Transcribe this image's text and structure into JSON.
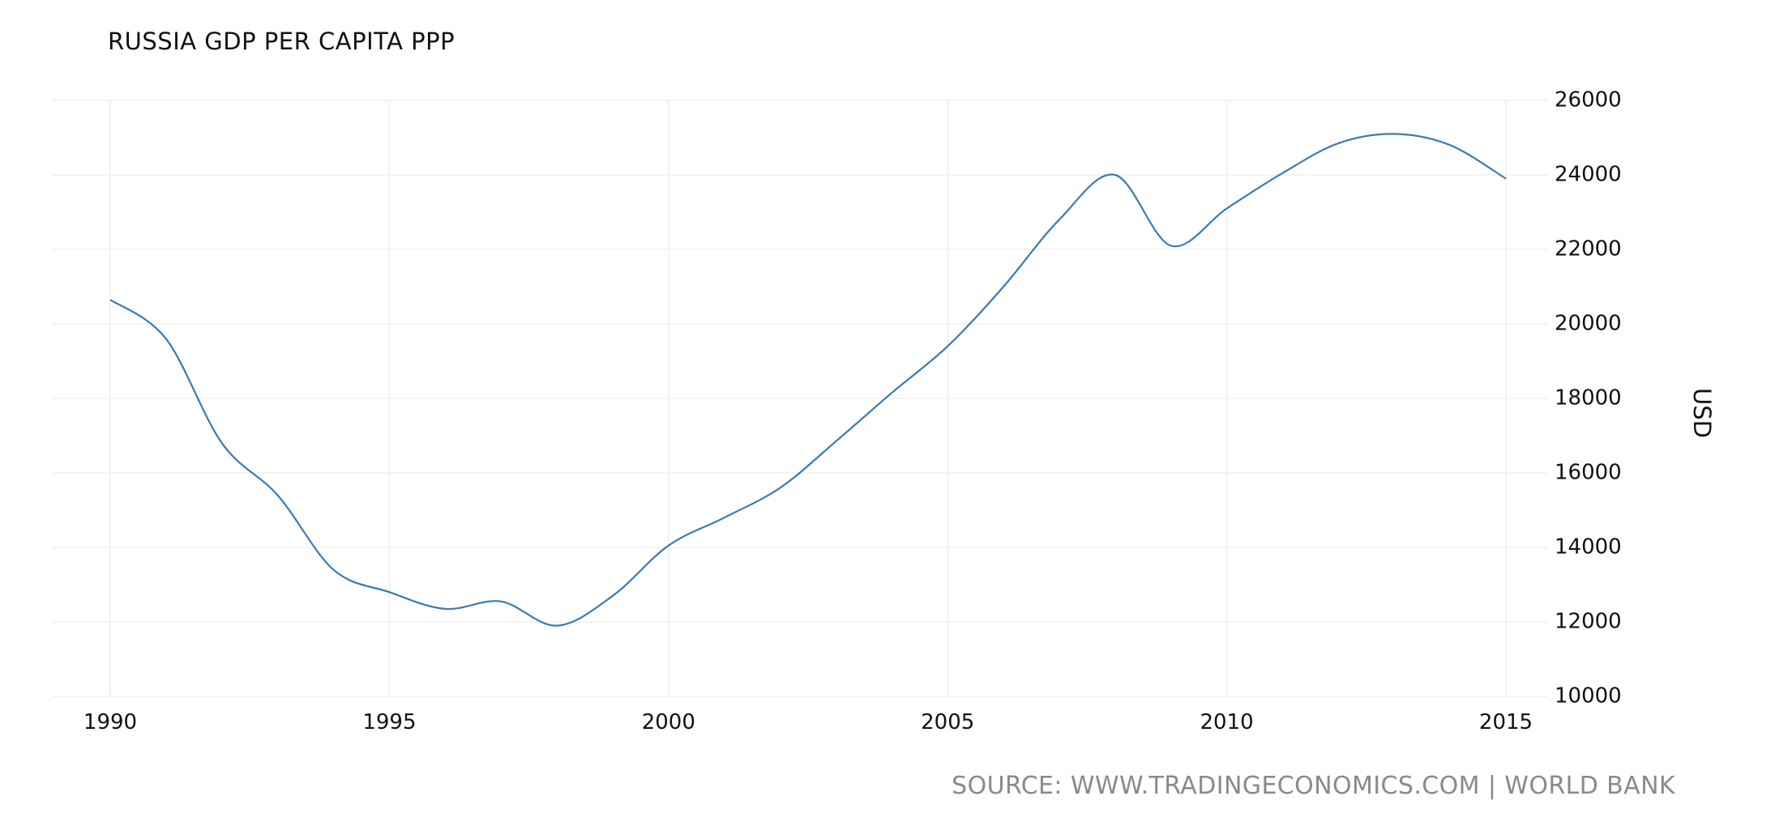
{
  "chart_data": {
    "type": "line",
    "title": "RUSSIA GDP PER CAPITA PPP",
    "xlabel": "",
    "ylabel": "USD",
    "x": [
      1990,
      1991,
      1992,
      1993,
      1994,
      1995,
      1996,
      1997,
      1998,
      1999,
      2000,
      2001,
      2002,
      2003,
      2004,
      2005,
      2006,
      2007,
      2008,
      2009,
      2010,
      2011,
      2012,
      2013,
      2014,
      2015
    ],
    "series": [
      {
        "name": "",
        "color": "#3a7ab3",
        "values": [
          20650,
          19600,
          16800,
          15400,
          13400,
          12800,
          12350,
          12550,
          11900,
          12700,
          14050,
          14800,
          15600,
          16850,
          18150,
          19400,
          21000,
          22800,
          24000,
          22100,
          23100,
          24050,
          24850,
          25100,
          24800,
          23900
        ]
      }
    ],
    "xlim": [
      1990,
      2015
    ],
    "ylim": [
      10000,
      26000
    ],
    "x_ticks": [
      1990,
      1995,
      2000,
      2005,
      2010,
      2015
    ],
    "y_ticks": [
      10000,
      12000,
      14000,
      16000,
      18000,
      20000,
      22000,
      24000,
      26000
    ],
    "y_axis_position": "right",
    "grid": true,
    "legend": "none"
  },
  "source": "SOURCE: WWW.TRADINGECONOMICS.COM | WORLD BANK"
}
